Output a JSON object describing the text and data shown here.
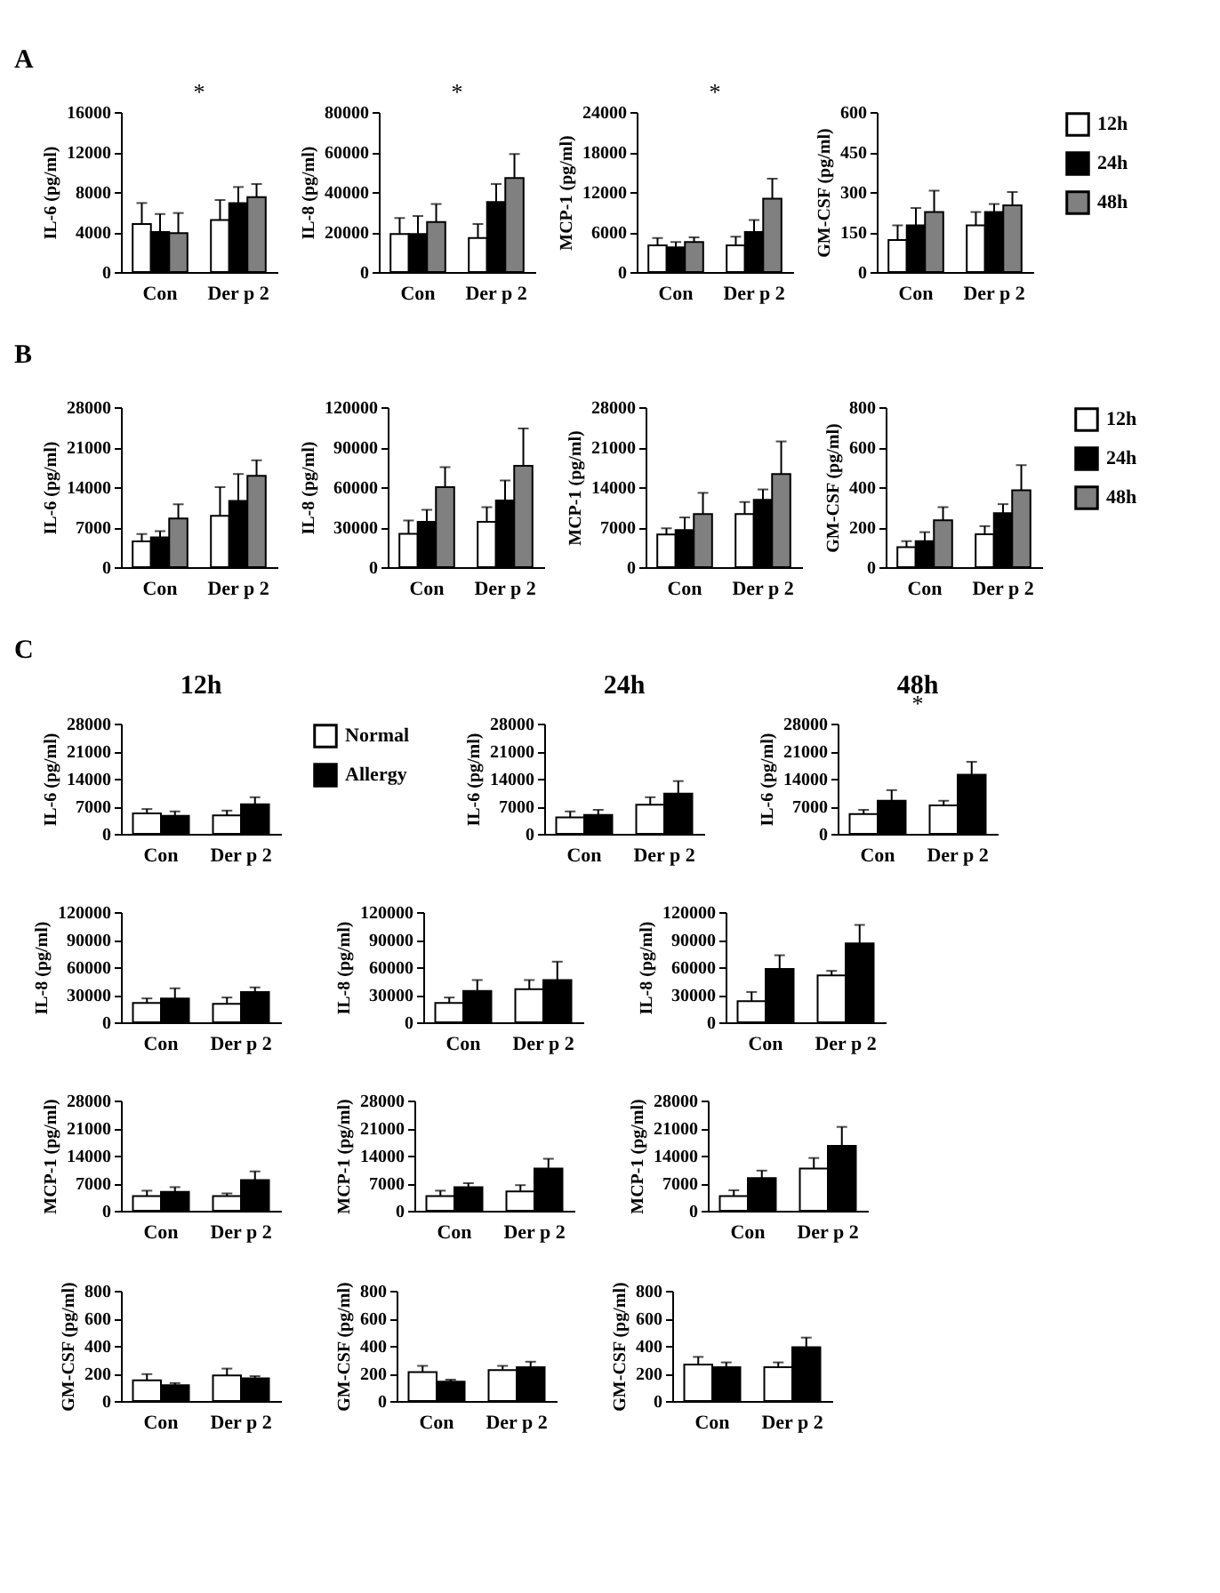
{
  "chart_data": [
    {
      "type": "bar",
      "categories": [
        "Con",
        "Der p 2"
      ],
      "ylabel": "IL-6  (pg/ml)",
      "ylim": [
        0,
        16000
      ],
      "yticks": [
        0,
        4000,
        8000,
        12000,
        16000
      ],
      "annotations": [
        "A",
        "*"
      ],
      "series": [
        {
          "color": "#ffffff",
          "values": [
            4800,
            5200
          ],
          "errors": [
            [
              4800,
              6900
            ],
            [
              5200,
              7200
            ]
          ]
        },
        {
          "color": "#000000",
          "values": [
            4000,
            6900
          ],
          "errors": [
            [
              4000,
              5800
            ],
            [
              6900,
              8500
            ]
          ]
        },
        {
          "color": "#808080",
          "values": [
            3900,
            7500
          ],
          "errors": [
            [
              3900,
              5900
            ],
            [
              7500,
              8800
            ]
          ]
        }
      ]
    },
    {
      "type": "bar",
      "categories": [
        "Con",
        "Der p 2"
      ],
      "ylabel": "IL-8 (pg/ml)",
      "ylim": [
        0,
        80000
      ],
      "yticks": [
        0,
        20000,
        40000,
        60000,
        80000
      ],
      "annotations": [
        "*"
      ],
      "series": [
        {
          "color": "#ffffff",
          "values": [
            19000,
            17000
          ],
          "errors": [
            [
              19000,
              27000
            ],
            [
              17000,
              24000
            ]
          ]
        },
        {
          "color": "#000000",
          "values": [
            19000,
            35000
          ],
          "errors": [
            [
              19000,
              28000
            ],
            [
              35000,
              44000
            ]
          ]
        },
        {
          "color": "#808080",
          "values": [
            25000,
            47000
          ],
          "errors": [
            [
              25000,
              34000
            ],
            [
              47000,
              59000
            ]
          ]
        }
      ]
    },
    {
      "type": "bar",
      "categories": [
        "Con",
        "Der p 2"
      ],
      "ylabel": "MCP-1 (pg/ml)",
      "ylim": [
        0,
        24000
      ],
      "yticks": [
        0,
        6000,
        12000,
        18000,
        24000
      ],
      "annotations": [
        "*"
      ],
      "series": [
        {
          "color": "#ffffff",
          "values": [
            4000,
            4000
          ],
          "errors": [
            [
              4000,
              5100
            ],
            [
              4000,
              5300
            ]
          ]
        },
        {
          "color": "#000000",
          "values": [
            3700,
            6000
          ],
          "errors": [
            [
              3700,
              4500
            ],
            [
              6000,
              7800
            ]
          ]
        },
        {
          "color": "#808080",
          "values": [
            4500,
            11000
          ],
          "errors": [
            [
              4500,
              5200
            ],
            [
              11000,
              14000
            ]
          ]
        }
      ]
    },
    {
      "type": "bar",
      "categories": [
        "Con",
        "Der p 2"
      ],
      "ylabel": "GM-CSF (pg/ml)",
      "ylim": [
        0,
        600
      ],
      "yticks": [
        0,
        150,
        300,
        450,
        600
      ],
      "legend": "right",
      "series": [
        {
          "name": "12h",
          "color": "#ffffff",
          "values": [
            120,
            175
          ],
          "errors": [
            [
              120,
              175
            ],
            [
              175,
              225
            ]
          ]
        },
        {
          "name": "24h",
          "color": "#000000",
          "values": [
            175,
            225
          ],
          "errors": [
            [
              175,
              240
            ],
            [
              225,
              255
            ]
          ]
        },
        {
          "name": "48h",
          "color": "#808080",
          "values": [
            225,
            250
          ],
          "errors": [
            [
              225,
              305
            ],
            [
              250,
              300
            ]
          ]
        }
      ]
    },
    {
      "type": "bar",
      "categories": [
        "Con",
        "Der p 2"
      ],
      "ylabel": "IL-6  (pg/ml)",
      "ylim": [
        0,
        28000
      ],
      "yticks": [
        0,
        7000,
        14000,
        21000,
        28000
      ],
      "annotations": [
        "B"
      ],
      "series": [
        {
          "color": "#ffffff",
          "values": [
            4500,
            9000
          ],
          "errors": [
            [
              4500,
              5800
            ],
            [
              9000,
              14000
            ]
          ]
        },
        {
          "color": "#000000",
          "values": [
            5200,
            11600
          ],
          "errors": [
            [
              5200,
              6300
            ],
            [
              11600,
              16300
            ]
          ]
        },
        {
          "color": "#808080",
          "values": [
            8500,
            16000
          ],
          "errors": [
            [
              8500,
              11000
            ],
            [
              16000,
              18700
            ]
          ]
        }
      ]
    },
    {
      "type": "bar",
      "categories": [
        "Con",
        "Der p 2"
      ],
      "ylabel": "IL-8 (pg/ml)",
      "ylim": [
        0,
        120000
      ],
      "yticks": [
        0,
        30000,
        60000,
        90000,
        120000
      ],
      "series": [
        {
          "color": "#ffffff",
          "values": [
            25000,
            34000
          ],
          "errors": [
            [
              25000,
              35000
            ],
            [
              34000,
              45000
            ]
          ]
        },
        {
          "color": "#000000",
          "values": [
            34000,
            50000
          ],
          "errors": [
            [
              34000,
              43000
            ],
            [
              50000,
              65000
            ]
          ]
        },
        {
          "color": "#808080",
          "values": [
            60000,
            76000
          ],
          "errors": [
            [
              60000,
              75000
            ],
            [
              76000,
              104000
            ]
          ]
        }
      ]
    },
    {
      "type": "bar",
      "categories": [
        "Con",
        "Der p 2"
      ],
      "ylabel": "MCP-1 (pg/ml)",
      "ylim": [
        0,
        28000
      ],
      "yticks": [
        0,
        7000,
        14000,
        21000,
        28000
      ],
      "series": [
        {
          "color": "#ffffff",
          "values": [
            5700,
            9300
          ],
          "errors": [
            [
              5700,
              6800
            ],
            [
              9300,
              11400
            ]
          ]
        },
        {
          "color": "#000000",
          "values": [
            6500,
            11800
          ],
          "errors": [
            [
              6500,
              8700
            ],
            [
              11800,
              13600
            ]
          ]
        },
        {
          "color": "#808080",
          "values": [
            9300,
            16300
          ],
          "errors": [
            [
              9300,
              13000
            ],
            [
              16300,
              22000
            ]
          ]
        }
      ]
    },
    {
      "type": "bar",
      "categories": [
        "Con",
        "Der p 2"
      ],
      "ylabel": "GM-CSF  (pg/ml)",
      "ylim": [
        0,
        800
      ],
      "yticks": [
        0,
        200,
        400,
        600,
        800
      ],
      "legend": "right",
      "series": [
        {
          "name": "12h",
          "color": "#ffffff",
          "values": [
            100,
            165
          ],
          "errors": [
            [
              100,
              130
            ],
            [
              165,
              205
            ]
          ]
        },
        {
          "name": "24h",
          "color": "#000000",
          "values": [
            130,
            270
          ],
          "errors": [
            [
              130,
              175
            ],
            [
              270,
              315
            ]
          ]
        },
        {
          "name": "48h",
          "color": "#808080",
          "values": [
            235,
            385
          ],
          "errors": [
            [
              235,
              300
            ],
            [
              385,
              510
            ]
          ]
        }
      ]
    },
    {
      "type": "bar",
      "title": "12h",
      "categories": [
        "Con",
        "Der p 2"
      ],
      "ylabel": "IL-6 (pg/ml)",
      "ylim": [
        0,
        28000
      ],
      "yticks": [
        0,
        7000,
        14000,
        21000,
        28000
      ],
      "annotations": [
        "C"
      ],
      "legend": "right",
      "series": [
        {
          "name": "Normal",
          "color": "#ffffff",
          "values": [
            5200,
            4700
          ],
          "errors": [
            [
              5200,
              6300
            ],
            [
              4700,
              5900
            ]
          ]
        },
        {
          "name": "Allergy",
          "color": "#000000",
          "values": [
            4600,
            7500
          ],
          "errors": [
            [
              4600,
              5700
            ],
            [
              7500,
              9300
            ]
          ]
        }
      ]
    },
    {
      "type": "bar",
      "title": "24h",
      "categories": [
        "Con",
        "Der p 2"
      ],
      "ylabel": "IL-6 (pg/ml)",
      "ylim": [
        0,
        28000
      ],
      "yticks": [
        0,
        7000,
        14000,
        21000,
        28000
      ],
      "series": [
        {
          "color": "#ffffff",
          "values": [
            4200,
            7400
          ],
          "errors": [
            [
              4200,
              5700
            ],
            [
              7400,
              9300
            ]
          ]
        },
        {
          "color": "#000000",
          "values": [
            4800,
            10200
          ],
          "errors": [
            [
              4800,
              6100
            ],
            [
              10200,
              13400
            ]
          ]
        }
      ]
    },
    {
      "type": "bar",
      "title": "48h",
      "categories": [
        "Con",
        "Der p 2"
      ],
      "ylabel": "IL-6 (pg/ml)",
      "ylim": [
        0,
        28000
      ],
      "yticks": [
        0,
        7000,
        14000,
        21000,
        28000
      ],
      "annotations": [
        "*"
      ],
      "series": [
        {
          "color": "#ffffff",
          "values": [
            5000,
            7200
          ],
          "errors": [
            [
              5000,
              6100
            ],
            [
              7200,
              8400
            ]
          ]
        },
        {
          "color": "#000000",
          "values": [
            8400,
            15000
          ],
          "errors": [
            [
              8400,
              11100
            ],
            [
              15000,
              18300
            ]
          ]
        }
      ]
    },
    {
      "type": "bar",
      "categories": [
        "Con",
        "Der p 2"
      ],
      "ylabel": "IL-8 (pg/ml)",
      "ylim": [
        0,
        120000
      ],
      "yticks": [
        0,
        30000,
        60000,
        90000,
        120000
      ],
      "series": [
        {
          "color": "#ffffff",
          "values": [
            21000,
            20000
          ],
          "errors": [
            [
              21000,
              26000
            ],
            [
              20000,
              27000
            ]
          ]
        },
        {
          "color": "#000000",
          "values": [
            26000,
            33000
          ],
          "errors": [
            [
              26000,
              37000
            ],
            [
              33000,
              38000
            ]
          ]
        }
      ]
    },
    {
      "type": "bar",
      "categories": [
        "Con",
        "Der p 2"
      ],
      "ylabel": "IL-8 (pg/ml)",
      "ylim": [
        0,
        120000
      ],
      "yticks": [
        0,
        30000,
        60000,
        90000,
        120000
      ],
      "series": [
        {
          "color": "#ffffff",
          "values": [
            21000,
            36000
          ],
          "errors": [
            [
              21000,
              27000
            ],
            [
              36000,
              46000
            ]
          ]
        },
        {
          "color": "#000000",
          "values": [
            34000,
            46000
          ],
          "errors": [
            [
              34000,
              46000
            ],
            [
              46000,
              66000
            ]
          ]
        }
      ]
    },
    {
      "type": "bar",
      "categories": [
        "Con",
        "Der p 2"
      ],
      "ylabel": "IL-8 (pg/ml)",
      "ylim": [
        0,
        120000
      ],
      "yticks": [
        0,
        30000,
        60000,
        90000,
        120000
      ],
      "series": [
        {
          "color": "#ffffff",
          "values": [
            23000,
            51000
          ],
          "errors": [
            [
              23000,
              33000
            ],
            [
              51000,
              56000
            ]
          ]
        },
        {
          "color": "#000000",
          "values": [
            58000,
            86000
          ],
          "errors": [
            [
              58000,
              73000
            ],
            [
              86000,
              106000
            ]
          ]
        }
      ]
    },
    {
      "type": "bar",
      "categories": [
        "Con",
        "Der p 2"
      ],
      "ylabel": "MCP-1 (pg/ml)",
      "ylim": [
        0,
        28000
      ],
      "yticks": [
        0,
        7000,
        14000,
        21000,
        28000
      ],
      "series": [
        {
          "color": "#ffffff",
          "values": [
            3700,
            3700
          ],
          "errors": [
            [
              3700,
              5100
            ],
            [
              3700,
              4400
            ]
          ]
        },
        {
          "color": "#000000",
          "values": [
            4800,
            7800
          ],
          "errors": [
            [
              4800,
              6000
            ],
            [
              7800,
              10000
            ]
          ]
        }
      ]
    },
    {
      "type": "bar",
      "categories": [
        "Con",
        "Der p 2"
      ],
      "ylabel": "MCP-1 (pg/ml)",
      "ylim": [
        0,
        28000
      ],
      "yticks": [
        0,
        7000,
        14000,
        21000,
        28000
      ],
      "series": [
        {
          "color": "#ffffff",
          "values": [
            3700,
            4900
          ],
          "errors": [
            [
              3700,
              5100
            ],
            [
              4900,
              6500
            ]
          ]
        },
        {
          "color": "#000000",
          "values": [
            6000,
            10700
          ],
          "errors": [
            [
              6000,
              7000
            ],
            [
              10700,
              13200
            ]
          ]
        }
      ]
    },
    {
      "type": "bar",
      "categories": [
        "Con",
        "Der p 2"
      ],
      "ylabel": "MCP-1 (pg/ml)",
      "ylim": [
        0,
        28000
      ],
      "yticks": [
        0,
        7000,
        14000,
        21000,
        28000
      ],
      "series": [
        {
          "color": "#ffffff",
          "values": [
            3700,
            10700
          ],
          "errors": [
            [
              3700,
              5200
            ],
            [
              10700,
              13400
            ]
          ]
        },
        {
          "color": "#000000",
          "values": [
            8300,
            16500
          ],
          "errors": [
            [
              8300,
              10200
            ],
            [
              16500,
              21300
            ]
          ]
        }
      ]
    },
    {
      "type": "bar",
      "categories": [
        "Con",
        "Der p 2"
      ],
      "ylabel": "GM-CSF (pg/ml)",
      "ylim": [
        0,
        800
      ],
      "yticks": [
        0,
        200,
        400,
        600,
        800
      ],
      "series": [
        {
          "color": "#ffffff",
          "values": [
            150,
            185
          ],
          "errors": [
            [
              150,
              195
            ],
            [
              185,
              235
            ]
          ]
        },
        {
          "color": "#000000",
          "values": [
            115,
            165
          ],
          "errors": [
            [
              115,
              130
            ],
            [
              165,
              180
            ]
          ]
        }
      ]
    },
    {
      "type": "bar",
      "categories": [
        "Con",
        "Der p 2"
      ],
      "ylabel": "GM-CSF (pg/ml)",
      "ylim": [
        0,
        800
      ],
      "yticks": [
        0,
        200,
        400,
        600,
        800
      ],
      "series": [
        {
          "color": "#ffffff",
          "values": [
            210,
            225
          ],
          "errors": [
            [
              210,
              255
            ],
            [
              225,
              255
            ]
          ]
        },
        {
          "color": "#000000",
          "values": [
            140,
            245
          ],
          "errors": [
            [
              140,
              155
            ],
            [
              245,
              285
            ]
          ]
        }
      ]
    },
    {
      "type": "bar",
      "categories": [
        "Con",
        "Der p 2"
      ],
      "ylabel": "GM-CSF (pg/ml)",
      "ylim": [
        0,
        800
      ],
      "yticks": [
        0,
        200,
        400,
        600,
        800
      ],
      "series": [
        {
          "color": "#ffffff",
          "values": [
            265,
            245
          ],
          "errors": [
            [
              265,
              320
            ],
            [
              245,
              280
            ]
          ]
        },
        {
          "color": "#000000",
          "values": [
            245,
            390
          ],
          "errors": [
            [
              245,
              280
            ],
            [
              390,
              460
            ]
          ]
        }
      ]
    }
  ]
}
